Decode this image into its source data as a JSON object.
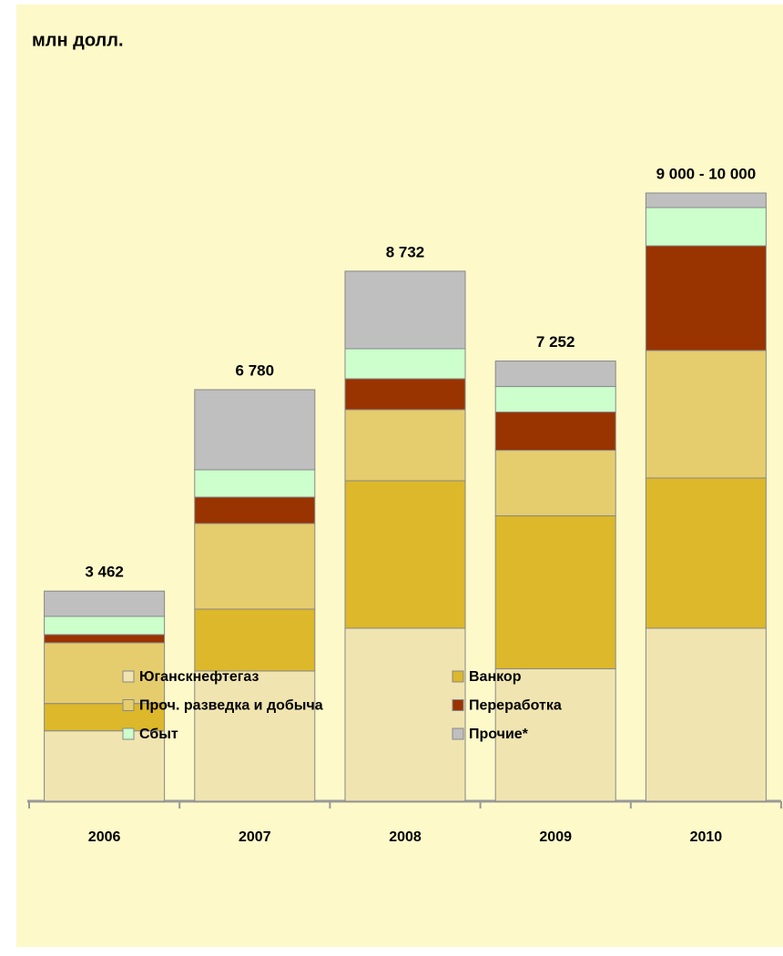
{
  "chart_data": {
    "type": "stacked-bar",
    "title": "млн долл.",
    "categories": [
      "2006",
      "2007",
      "2008",
      "2009",
      "2010"
    ],
    "series": [
      {
        "name": "Юганскнефтегаз",
        "color": "#f0e4b0",
        "values": [
          1160,
          2145,
          2850,
          2182,
          2850
        ]
      },
      {
        "name": "Ванкор",
        "color": "#dcb82a",
        "values": [
          450,
          1020,
          2430,
          2520,
          2475
        ]
      },
      {
        "name": "Проч. разведка и добыча",
        "color": "#e5cd6e",
        "values": [
          1000,
          1410,
          1170,
          1080,
          2100
        ]
      },
      {
        "name": "Переработка",
        "color": "#993300",
        "values": [
          135,
          435,
          510,
          630,
          1725
        ]
      },
      {
        "name": "Сбыт",
        "color": "#ccffcc",
        "values": [
          300,
          450,
          495,
          420,
          630
        ]
      },
      {
        "name": "Прочие*",
        "color": "#bfbfbf",
        "values": [
          417,
          1320,
          1277,
          420,
          240
        ]
      }
    ],
    "totals": [
      3462,
      6780,
      8732,
      7252,
      null
    ],
    "total_labels": [
      "3 462",
      "6 780",
      "8 732",
      "7 252",
      "9 000 - 10 000"
    ]
  }
}
